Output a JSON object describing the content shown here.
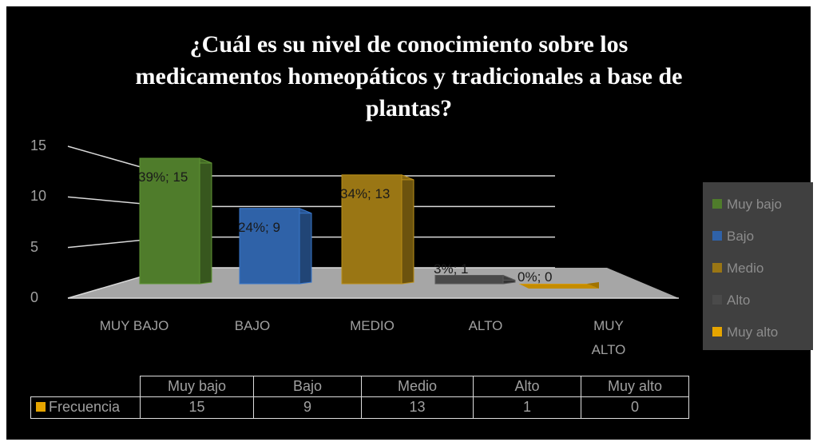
{
  "chart_data": {
    "type": "bar",
    "title": "¿Cuál es su nivel de conocimiento sobre los medicamentos homeopáticos y tradicionales a base de plantas?",
    "categories": [
      "MUY BAJO",
      "BAJO",
      "MEDIO",
      "ALTO",
      "MUY ALTO"
    ],
    "values": [
      15,
      9,
      13,
      1,
      0
    ],
    "value_labels": [
      "39%; 15",
      "24%; 9",
      "34%; 13",
      "3%; 1",
      "0%; 0"
    ],
    "colors": [
      "#4f7c2b",
      "#2f62a8",
      "#9a7614",
      "#4a4a4a",
      "#e6a500"
    ],
    "legend": [
      "Muy bajo",
      "Bajo",
      "Medio",
      "Alto",
      "Muy alto"
    ],
    "legend_position": "right",
    "ylim": [
      0,
      15
    ],
    "yticks": [
      0,
      5,
      10,
      15
    ],
    "grid": true,
    "table": {
      "row_label": "Frecuencia",
      "row_color": "#e6a500"
    }
  }
}
